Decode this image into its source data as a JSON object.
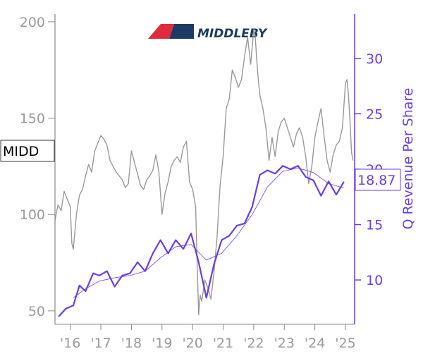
{
  "chart_data": {
    "type": "line",
    "ticker_label": "MIDD",
    "logo_text": "MIDDLEBY",
    "ylabel_right": "Q Revenue Per Share",
    "last_value_label": "18.87",
    "x_ticks": [
      "'16",
      "'17",
      "'18",
      "'19",
      "'20",
      "'21",
      "'22",
      "'23",
      "'24",
      "'25"
    ],
    "y_left": {
      "ticks": [
        "50",
        "100",
        "150",
        "200"
      ],
      "tick_values": [
        50,
        100,
        150,
        200
      ],
      "range": [
        43,
        204
      ]
    },
    "y_right": {
      "ticks": [
        "10",
        "15",
        "20",
        "25",
        "30"
      ],
      "tick_values": [
        10,
        15,
        20,
        25,
        30
      ],
      "range": [
        6,
        34
      ]
    },
    "x_range": [
      2015.5,
      2025.3
    ],
    "colors": {
      "price": "#999999",
      "revenue": "#6a3de8",
      "revenue_avg": "#6a3de8",
      "axis_left": "#888888",
      "axis_right": "#6a3de8",
      "logo_red": "#e02b3c",
      "logo_navy": "#1c3a63"
    },
    "series": [
      {
        "role": "price",
        "axis": "left",
        "points": [
          [
            2015.5,
            97
          ],
          [
            2015.6,
            105
          ],
          [
            2015.7,
            102
          ],
          [
            2015.8,
            112
          ],
          [
            2015.9,
            108
          ],
          [
            2016.0,
            104
          ],
          [
            2016.05,
            85
          ],
          [
            2016.1,
            82
          ],
          [
            2016.2,
            100
          ],
          [
            2016.3,
            110
          ],
          [
            2016.4,
            113
          ],
          [
            2016.5,
            120
          ],
          [
            2016.6,
            126
          ],
          [
            2016.7,
            122
          ],
          [
            2016.8,
            133
          ],
          [
            2016.9,
            137
          ],
          [
            2017.0,
            141
          ],
          [
            2017.1,
            139
          ],
          [
            2017.2,
            136
          ],
          [
            2017.3,
            128
          ],
          [
            2017.4,
            125
          ],
          [
            2017.5,
            122
          ],
          [
            2017.6,
            120
          ],
          [
            2017.7,
            118
          ],
          [
            2017.8,
            114
          ],
          [
            2017.9,
            116
          ],
          [
            2018.0,
            133
          ],
          [
            2018.1,
            127
          ],
          [
            2018.2,
            121
          ],
          [
            2018.3,
            115
          ],
          [
            2018.4,
            113
          ],
          [
            2018.5,
            118
          ],
          [
            2018.6,
            120
          ],
          [
            2018.7,
            123
          ],
          [
            2018.8,
            131
          ],
          [
            2018.9,
            122
          ],
          [
            2019.0,
            100
          ],
          [
            2019.1,
            111
          ],
          [
            2019.2,
            117
          ],
          [
            2019.3,
            125
          ],
          [
            2019.4,
            128
          ],
          [
            2019.5,
            130
          ],
          [
            2019.6,
            127
          ],
          [
            2019.7,
            135
          ],
          [
            2019.8,
            138
          ],
          [
            2019.9,
            117
          ],
          [
            2020.0,
            113
          ],
          [
            2020.1,
            104
          ],
          [
            2020.15,
            74
          ],
          [
            2020.2,
            48
          ],
          [
            2020.25,
            58
          ],
          [
            2020.3,
            55
          ],
          [
            2020.4,
            66
          ],
          [
            2020.5,
            62
          ],
          [
            2020.6,
            56
          ],
          [
            2020.7,
            70
          ],
          [
            2020.8,
            88
          ],
          [
            2020.9,
            115
          ],
          [
            2021.0,
            130
          ],
          [
            2021.1,
            155
          ],
          [
            2021.2,
            160
          ],
          [
            2021.3,
            175
          ],
          [
            2021.4,
            171
          ],
          [
            2021.5,
            166
          ],
          [
            2021.6,
            170
          ],
          [
            2021.7,
            182
          ],
          [
            2021.8,
            192
          ],
          [
            2021.9,
            178
          ],
          [
            2022.0,
            196
          ],
          [
            2022.05,
            192
          ],
          [
            2022.1,
            180
          ],
          [
            2022.15,
            170
          ],
          [
            2022.2,
            162
          ],
          [
            2022.3,
            155
          ],
          [
            2022.4,
            145
          ],
          [
            2022.5,
            128
          ],
          [
            2022.6,
            140
          ],
          [
            2022.7,
            130
          ],
          [
            2022.8,
            143
          ],
          [
            2022.9,
            148
          ],
          [
            2023.0,
            150
          ],
          [
            2023.1,
            145
          ],
          [
            2023.2,
            140
          ],
          [
            2023.3,
            135
          ],
          [
            2023.4,
            142
          ],
          [
            2023.5,
            145
          ],
          [
            2023.6,
            140
          ],
          [
            2023.7,
            130
          ],
          [
            2023.8,
            116
          ],
          [
            2023.9,
            125
          ],
          [
            2024.0,
            140
          ],
          [
            2024.1,
            148
          ],
          [
            2024.2,
            155
          ],
          [
            2024.3,
            141
          ],
          [
            2024.4,
            128
          ],
          [
            2024.5,
            122
          ],
          [
            2024.6,
            131
          ],
          [
            2024.7,
            136
          ],
          [
            2024.8,
            138
          ],
          [
            2024.9,
            145
          ],
          [
            2025.0,
            168
          ],
          [
            2025.05,
            170
          ],
          [
            2025.1,
            162
          ],
          [
            2025.15,
            148
          ],
          [
            2025.2,
            132
          ],
          [
            2025.25,
            128
          ]
        ]
      },
      {
        "role": "revenue",
        "axis": "right",
        "points": [
          [
            2015.62,
            6.7
          ],
          [
            2015.85,
            7.4
          ],
          [
            2016.1,
            7.7
          ],
          [
            2016.3,
            9.5
          ],
          [
            2016.5,
            9.0
          ],
          [
            2016.75,
            10.6
          ],
          [
            2016.95,
            10.4
          ],
          [
            2017.2,
            10.8
          ],
          [
            2017.45,
            9.4
          ],
          [
            2017.7,
            10.4
          ],
          [
            2017.95,
            10.6
          ],
          [
            2018.2,
            11.6
          ],
          [
            2018.45,
            10.8
          ],
          [
            2018.7,
            12.4
          ],
          [
            2018.95,
            13.6
          ],
          [
            2019.2,
            12.4
          ],
          [
            2019.45,
            13.6
          ],
          [
            2019.7,
            12.8
          ],
          [
            2019.95,
            14.2
          ],
          [
            2020.2,
            11.6
          ],
          [
            2020.45,
            8.4
          ],
          [
            2020.7,
            11.4
          ],
          [
            2020.95,
            13.6
          ],
          [
            2021.2,
            14.0
          ],
          [
            2021.45,
            14.9
          ],
          [
            2021.7,
            15.1
          ],
          [
            2021.95,
            16.6
          ],
          [
            2022.2,
            19.5
          ],
          [
            2022.45,
            19.9
          ],
          [
            2022.7,
            19.6
          ],
          [
            2022.95,
            20.3
          ],
          [
            2023.2,
            20.0
          ],
          [
            2023.45,
            20.3
          ],
          [
            2023.7,
            19.3
          ],
          [
            2023.95,
            19.0
          ],
          [
            2024.2,
            17.6
          ],
          [
            2024.45,
            18.9
          ],
          [
            2024.7,
            17.7
          ],
          [
            2024.95,
            18.87
          ]
        ]
      },
      {
        "role": "revenue_avg",
        "axis": "right",
        "points": [
          [
            2016.1,
            8.4
          ],
          [
            2016.5,
            9.2
          ],
          [
            2016.95,
            9.9
          ],
          [
            2017.45,
            10.2
          ],
          [
            2017.95,
            10.4
          ],
          [
            2018.45,
            10.8
          ],
          [
            2018.95,
            12.0
          ],
          [
            2019.45,
            13.0
          ],
          [
            2019.95,
            13.2
          ],
          [
            2020.45,
            11.8
          ],
          [
            2020.95,
            12.4
          ],
          [
            2021.45,
            14.0
          ],
          [
            2021.95,
            15.9
          ],
          [
            2022.45,
            18.4
          ],
          [
            2022.95,
            19.8
          ],
          [
            2023.45,
            20.1
          ],
          [
            2023.95,
            19.7
          ],
          [
            2024.45,
            18.7
          ],
          [
            2024.95,
            18.3
          ]
        ]
      }
    ]
  }
}
